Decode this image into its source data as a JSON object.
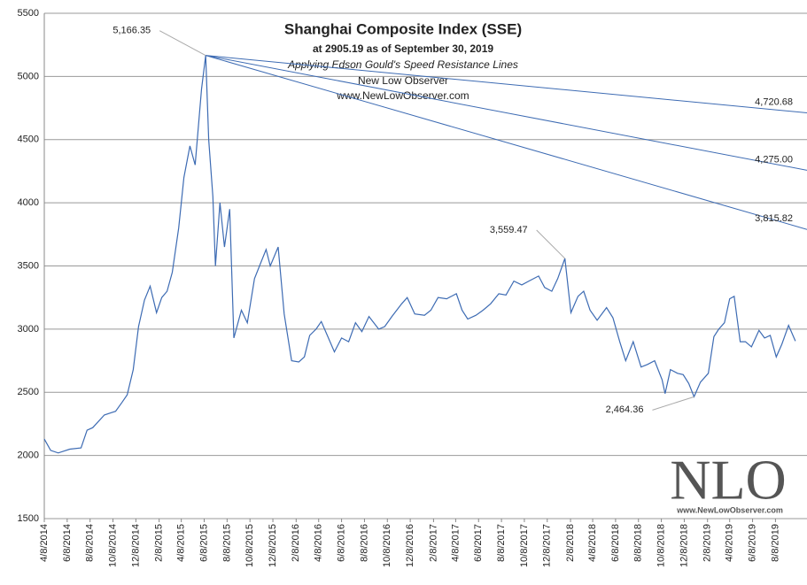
{
  "chart_data": {
    "type": "line",
    "title": "Shanghai  Composite Index (SSE)",
    "subtitle": "at 2905.19 as of September 30, 2019",
    "method": "Applying Edson Gould's Speed Resistance Lines",
    "source": "New Low Observer",
    "website": "www.NewLowObserver.com",
    "watermark": {
      "logo": "NLO",
      "url": "www.NewLowObserver.com"
    },
    "ylim": [
      1500,
      5500
    ],
    "yticks": [
      1500,
      2000,
      2500,
      3000,
      3500,
      4000,
      4500,
      5000,
      5500
    ],
    "xlim": [
      "4/8/2014",
      "10/31/2019"
    ],
    "xticks": [
      "4/8/2014",
      "6/8/2014",
      "8/8/2014",
      "10/8/2014",
      "12/8/2014",
      "2/8/2015",
      "4/8/2015",
      "6/8/2015",
      "8/8/2015",
      "10/8/2015",
      "12/8/2015",
      "2/8/2016",
      "4/8/2016",
      "6/8/2016",
      "8/8/2016",
      "10/8/2016",
      "12/8/2016",
      "2/8/2017",
      "4/8/2017",
      "6/8/2017",
      "8/8/2017",
      "10/8/2017",
      "12/8/2017",
      "2/8/2018",
      "4/8/2018",
      "6/8/2018",
      "8/8/2018",
      "10/8/2018",
      "12/8/2018",
      "2/8/2019",
      "4/8/2019",
      "6/8/2019",
      "8/8/2019"
    ],
    "grid": true,
    "series": [
      {
        "name": "SSE",
        "color": "#3d6bb3",
        "x": [
          "4/8/2014",
          "4/25/2014",
          "5/15/2014",
          "6/15/2014",
          "7/15/2014",
          "7/31/2014",
          "8/15/2014",
          "9/15/2014",
          "10/15/2014",
          "11/1/2014",
          "11/15/2014",
          "12/1/2014",
          "12/15/2014",
          "12/31/2014",
          "1/15/2015",
          "2/1/2015",
          "2/15/2015",
          "3/1/2015",
          "3/15/2015",
          "4/1/2015",
          "4/15/2015",
          "5/1/2015",
          "5/15/2015",
          "6/1/2015",
          "6/12/2015",
          "6/20/2015",
          "7/1/2015",
          "7/8/2015",
          "7/20/2015",
          "8/1/2015",
          "8/15/2015",
          "8/26/2015",
          "9/15/2015",
          "10/1/2015",
          "10/20/2015",
          "11/5/2015",
          "11/20/2015",
          "12/1/2015",
          "12/22/2015",
          "1/7/2016",
          "1/27/2016",
          "2/15/2016",
          "3/1/2016",
          "3/15/2016",
          "4/1/2016",
          "4/15/2016",
          "5/1/2016",
          "5/20/2016",
          "6/8/2016",
          "6/27/2016",
          "7/15/2016",
          "8/1/2016",
          "8/20/2016",
          "9/15/2016",
          "10/1/2016",
          "10/20/2016",
          "11/15/2016",
          "11/30/2016",
          "12/20/2016",
          "1/15/2017",
          "2/1/2017",
          "2/20/2017",
          "3/15/2017",
          "4/10/2017",
          "4/25/2017",
          "5/10/2017",
          "6/1/2017",
          "6/20/2017",
          "7/10/2017",
          "8/1/2017",
          "8/20/2017",
          "9/10/2017",
          "10/1/2017",
          "10/20/2017",
          "11/15/2017",
          "12/1/2017",
          "12/20/2017",
          "1/5/2018",
          "1/24/2018",
          "2/9/2018",
          "2/28/2018",
          "3/15/2018",
          "4/1/2018",
          "4/20/2018",
          "5/15/2018",
          "6/1/2018",
          "6/19/2018",
          "7/5/2018",
          "7/25/2018",
          "8/15/2018",
          "9/1/2018",
          "9/20/2018",
          "10/10/2018",
          "10/18/2018",
          "11/1/2018",
          "11/20/2018",
          "12/5/2018",
          "12/20/2018",
          "1/3/2019",
          "1/20/2019",
          "2/10/2019",
          "2/25/2019",
          "3/10/2019",
          "3/25/2019",
          "4/8/2019",
          "4/20/2019",
          "5/6/2019",
          "5/20/2019",
          "6/5/2019",
          "6/25/2019",
          "7/10/2019",
          "7/25/2019",
          "8/10/2019",
          "8/25/2019",
          "9/12/2019",
          "9/30/2019"
        ],
        "values": [
          2130,
          2040,
          2020,
          2050,
          2060,
          2200,
          2220,
          2320,
          2350,
          2420,
          2480,
          2680,
          3020,
          3230,
          3340,
          3130,
          3250,
          3300,
          3450,
          3800,
          4200,
          4450,
          4300,
          4900,
          5166.35,
          4500,
          4050,
          3500,
          4000,
          3650,
          3950,
          2930,
          3150,
          3050,
          3400,
          3520,
          3630,
          3500,
          3650,
          3120,
          2750,
          2740,
          2780,
          2950,
          3000,
          3060,
          2950,
          2820,
          2930,
          2900,
          3050,
          2980,
          3100,
          3000,
          3020,
          3100,
          3200,
          3250,
          3120,
          3110,
          3150,
          3250,
          3240,
          3280,
          3150,
          3080,
          3110,
          3150,
          3200,
          3280,
          3270,
          3380,
          3350,
          3380,
          3420,
          3330,
          3300,
          3400,
          3559.47,
          3130,
          3260,
          3300,
          3150,
          3070,
          3170,
          3090,
          2900,
          2750,
          2900,
          2700,
          2720,
          2750,
          2600,
          2490,
          2680,
          2650,
          2640,
          2570,
          2464.36,
          2580,
          2650,
          2940,
          3000,
          3050,
          3240,
          3260,
          2900,
          2900,
          2860,
          2990,
          2930,
          2950,
          2780,
          2880,
          3030,
          2905.19
        ]
      }
    ],
    "resistance_lines": {
      "start_x": "6/12/2015",
      "start_value": 5166.35,
      "end_x": "9/30/2019",
      "color": "#3d6bb3",
      "values": [
        4720.68,
        4275.0,
        3815.82
      ],
      "value_labels": [
        "4,720.68",
        "4,275.00",
        "3,815.82"
      ]
    },
    "annotations": [
      {
        "x": "6/12/2015",
        "value": 5166.35,
        "label": "5,166.35"
      },
      {
        "x": "1/24/2018",
        "value": 3559.47,
        "label": "3,559.47"
      },
      {
        "x": "1/3/2019",
        "value": 2464.36,
        "label": "2,464.36"
      }
    ]
  }
}
